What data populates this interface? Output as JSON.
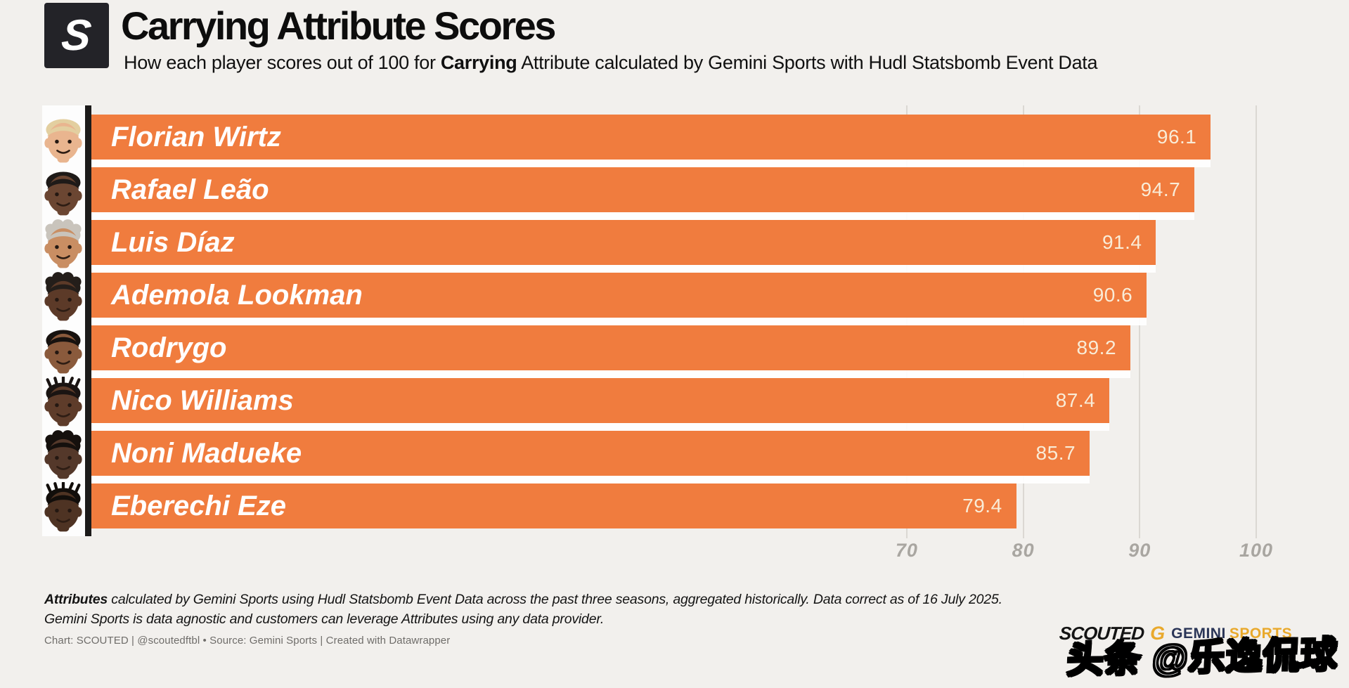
{
  "header": {
    "logo_letter": "S",
    "title": "Carrying Attribute Scores",
    "subtitle_prefix": "How each player scores out of 100 for ",
    "subtitle_bold": "Carrying",
    "subtitle_suffix": " Attribute calculated by Gemini Sports with Hudl Statsbomb Event Data"
  },
  "chart_data": {
    "type": "bar",
    "orientation": "horizontal",
    "title": "Carrying Attribute Scores",
    "xlabel": "",
    "ylabel": "",
    "xlim": [
      0,
      100
    ],
    "ticks": [
      70,
      80,
      90,
      100
    ],
    "grid": true,
    "bar_color": "#F07C3E",
    "value_label_color": "#F9ECD7",
    "categories": [
      "Florian Wirtz",
      "Rafael Leão",
      "Luis Díaz",
      "Ademola Lookman",
      "Rodrygo",
      "Nico Williams",
      "Noni Madueke",
      "Eberechi Eze"
    ],
    "values": [
      96.1,
      94.7,
      91.4,
      90.6,
      89.2,
      87.4,
      85.7,
      79.4
    ],
    "players": [
      {
        "name": "Florian Wirtz",
        "value": "96.1",
        "avatar": {
          "skin": "#E9B58F",
          "hair": "#E3CFA0",
          "style": "short"
        }
      },
      {
        "name": "Rafael Leão",
        "value": "94.7",
        "avatar": {
          "skin": "#6B4632",
          "hair": "#1E1A18",
          "style": "short"
        }
      },
      {
        "name": "Luis Díaz",
        "value": "91.4",
        "avatar": {
          "skin": "#C98E63",
          "hair": "#C9C4BC",
          "style": "curly"
        }
      },
      {
        "name": "Ademola Lookman",
        "value": "90.6",
        "avatar": {
          "skin": "#5C3A28",
          "hair": "#241E1A",
          "style": "curly"
        }
      },
      {
        "name": "Rodrygo",
        "value": "89.2",
        "avatar": {
          "skin": "#8A5A3C",
          "hair": "#17120F",
          "style": "short"
        }
      },
      {
        "name": "Nico Williams",
        "value": "87.4",
        "avatar": {
          "skin": "#5E3C2A",
          "hair": "#1A1412",
          "style": "braids"
        }
      },
      {
        "name": "Noni Madueke",
        "value": "85.7",
        "avatar": {
          "skin": "#54382A",
          "hair": "#15100D",
          "style": "curly"
        }
      },
      {
        "name": "Eberechi Eze",
        "value": "79.4",
        "avatar": {
          "skin": "#4E3323",
          "hair": "#120E0B",
          "style": "braids"
        }
      }
    ]
  },
  "footer": {
    "note1_bold": "Attributes",
    "note1_rest": " calculated by Gemini Sports using Hudl Statsbomb Event Data across the past three seasons, aggregated historically. Data correct as of 16 July 2025.",
    "note2": "Gemini Sports is data agnostic and customers can leverage Attributes using any data provider.",
    "credit": "Chart: SCOUTED | @scoutedftbl • Source: Gemini Sports | Created with Datawrapper"
  },
  "branding": {
    "scouted_wordmark": "SCOUTED",
    "gemini_g": "G",
    "gemini_word": "GEMINI",
    "sports_word": "SPORTS",
    "gold": "#E9A92C",
    "navy": "#2A3557"
  },
  "watermark": {
    "text": "头条 @乐逸侃球"
  }
}
